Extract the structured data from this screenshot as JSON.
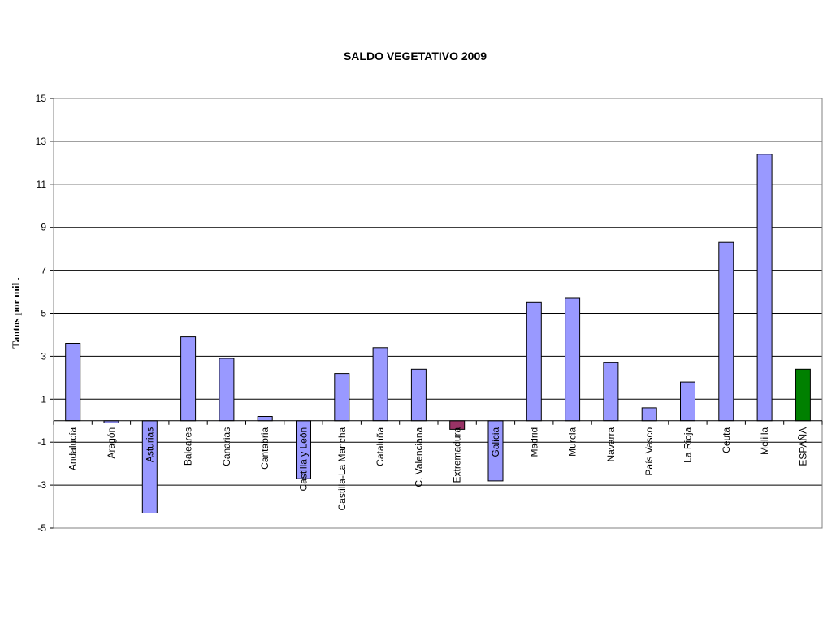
{
  "chart_data": {
    "type": "bar",
    "title": "SALDO VEGETATIVO 2009",
    "xlabel": "",
    "ylabel": "Tantos por mil .",
    "ylim": [
      -5,
      15
    ],
    "yticks": [
      -5,
      -3,
      -1,
      1,
      3,
      5,
      7,
      9,
      11,
      13,
      15
    ],
    "grid": true,
    "legend": "none",
    "categories": [
      "Andalucía",
      "Aragón",
      "Asturias",
      "Baleares",
      "Canarias",
      "Cantabria",
      "Castilla y León",
      "Castilla-La Mancha",
      "Cataluña",
      "C. Valenciana",
      "Extremadura",
      "Galicia",
      "Madrid",
      "Murcia",
      "Navarra",
      "País Vasco",
      "La Rioja",
      "Ceuta",
      "Melilla",
      "ESPAÑA"
    ],
    "values": [
      3.6,
      -0.1,
      -4.3,
      3.9,
      2.9,
      0.2,
      -2.7,
      2.2,
      3.4,
      2.4,
      -0.4,
      -2.8,
      5.5,
      5.7,
      2.7,
      0.6,
      1.8,
      8.3,
      12.4,
      2.4
    ],
    "colors": {
      "default": "#9999ff",
      "highlight": "#993366",
      "total": "#008000",
      "border": "#000000",
      "grid": "#000000",
      "frame": "#808080"
    },
    "bar_color_keys": [
      "default",
      "default",
      "default",
      "default",
      "default",
      "default",
      "default",
      "default",
      "default",
      "default",
      "highlight",
      "default",
      "default",
      "default",
      "default",
      "default",
      "default",
      "default",
      "default",
      "total"
    ]
  }
}
